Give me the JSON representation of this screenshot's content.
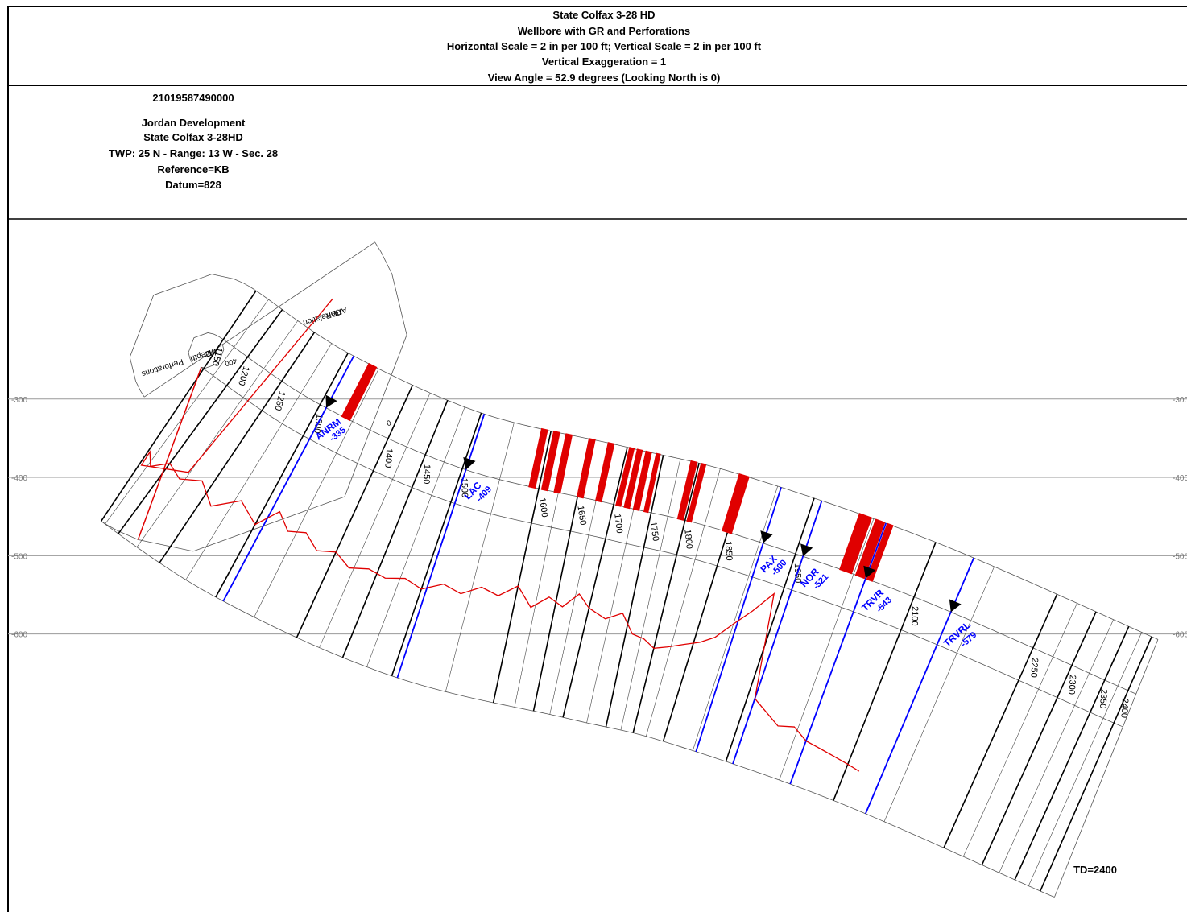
{
  "header": {
    "lines": [
      "State Colfax 3-28 HD",
      "Wellbore with GR and Perforations",
      "Horizontal Scale = 2 in per 100 ft; Vertical Scale = 2 in per 100 ft",
      "Vertical Exaggeration = 1",
      "View Angle = 52.9 degrees (Looking North is 0)"
    ]
  },
  "well_info": {
    "api": "21019587490000",
    "lines": [
      "Jordan Development",
      "State Colfax  3-28HD",
      "TWP: 25 N - Range: 13 W - Sec. 28",
      "Reference=KB",
      "Datum=828"
    ]
  },
  "chart_data": {
    "type": "wellbore",
    "ylim": [
      -70,
      -955
    ],
    "yticks": [
      -300,
      -400,
      -500,
      -600
    ],
    "grid": true,
    "track_headers": {
      "gr": [
        "Correlation",
        "GR",
        "API"
      ],
      "depth": [
        "Depth",
        "MD"
      ],
      "perforations": "Perforations"
    },
    "gr": {
      "name": "GR",
      "color": "#e00000",
      "lim": [
        0,
        400
      ],
      "ticks": [
        0,
        400
      ],
      "md": [
        1100,
        1120,
        1140,
        1160,
        1180,
        1200,
        1220,
        1240,
        1260,
        1280,
        1300,
        1320,
        1340,
        1360,
        1380,
        1400,
        1420,
        1440,
        1460,
        1480,
        1500,
        1520,
        1540,
        1560,
        1580,
        1600,
        1620,
        1640,
        1660,
        1680,
        1700,
        1720,
        1740,
        1760,
        1780,
        1800,
        1820,
        1840,
        1860,
        1880,
        1900,
        1920,
        1940,
        1960,
        1980,
        2000,
        2020,
        2040,
        2060,
        2080,
        2100,
        2120
      ],
      "values": [
        140,
        170,
        150,
        185,
        160,
        190,
        175,
        200,
        165,
        210,
        180,
        230,
        200,
        215,
        190,
        205,
        185,
        200,
        195,
        210,
        200,
        225,
        215,
        240,
        230,
        260,
        220,
        250,
        235,
        270,
        245,
        230,
        250,
        210,
        205,
        190,
        200,
        215,
        230,
        250,
        290,
        330,
        380,
        150,
        130,
        110,
        120,
        100,
        95,
        90,
        85,
        80
      ]
    },
    "depth_ticks": [
      1150,
      1200,
      1250,
      1300,
      1400,
      1450,
      1500,
      1600,
      1650,
      1700,
      1750,
      1800,
      1850,
      1950,
      2100,
      2250,
      2300,
      2350,
      2400
    ],
    "perforations": {
      "color": "#e00000",
      "intervals": [
        [
          1335,
          1346
        ],
        [
          1588,
          1595
        ],
        [
          1604,
          1611
        ],
        [
          1620,
          1627
        ],
        [
          1650,
          1657
        ],
        [
          1675,
          1682
        ],
        [
          1703,
          1708
        ],
        [
          1713,
          1719
        ],
        [
          1725,
          1732
        ],
        [
          1740,
          1745
        ],
        [
          1790,
          1797
        ],
        [
          1803,
          1808
        ],
        [
          1845,
          1856
        ],
        [
          2008,
          2022
        ],
        [
          2028,
          2038
        ],
        [
          2042,
          2048
        ]
      ]
    },
    "tops": [
      {
        "name": "ANRM",
        "value": -335,
        "md": 1310
      },
      {
        "name": "LAC",
        "value": -409,
        "md": 1505
      },
      {
        "name": "PAX",
        "value": -500,
        "md": 1905
      },
      {
        "name": "NOR",
        "value": -521,
        "md": 1960
      },
      {
        "name": "TRVR",
        "value": -543,
        "md": 2040
      },
      {
        "name": "TRVRL",
        "value": -579,
        "md": 2150
      }
    ],
    "top_color": "#0000ff",
    "td_label": "TD=2400"
  }
}
